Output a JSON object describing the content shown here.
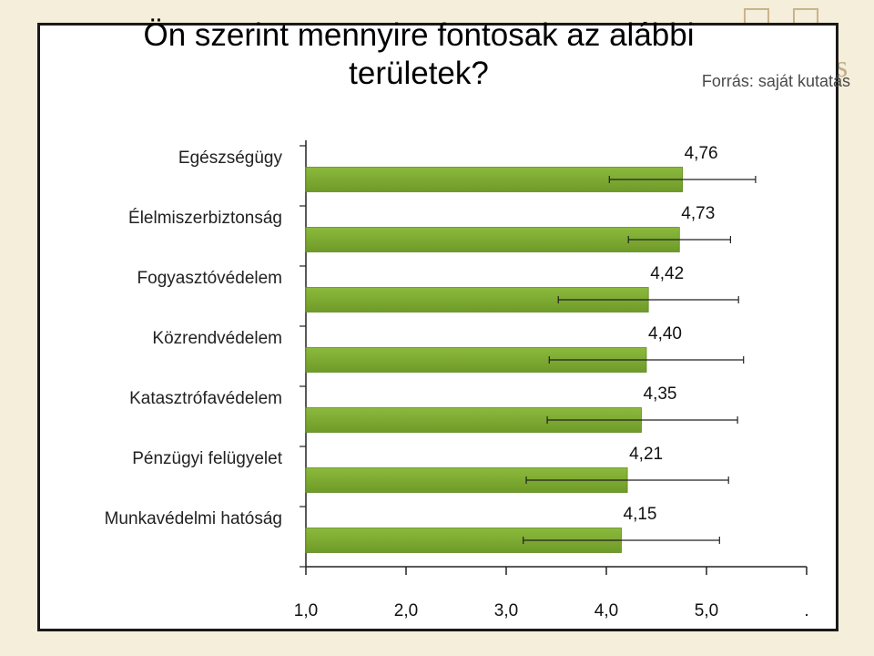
{
  "colors": {
    "bar": "#8cba3c",
    "bar_dark": "#6e9a28",
    "axis": "#222222",
    "background": "#f4eedb",
    "panel": "#ffffff"
  },
  "chart_data": {
    "type": "bar",
    "orientation": "horizontal",
    "title": "Ön szerint mennyire fontosak az alábbi területek?",
    "source_note": "Forrás: saját kutatás",
    "categories": [
      "Egészségügy",
      "Élelmiszerbiztonság",
      "Fogyasztóvédelem",
      "Közrendvédelem",
      "Katasztrófavédelem",
      "Pénzügyi felügyelet",
      "Munkavédelmi hatóság"
    ],
    "values": [
      4.76,
      4.73,
      4.42,
      4.4,
      4.35,
      4.21,
      4.15
    ],
    "value_labels": [
      "4,76",
      "4,73",
      "4,42",
      "4,40",
      "4,35",
      "4,21",
      "4,15"
    ],
    "error_low": [
      4.03,
      4.22,
      3.52,
      3.43,
      3.41,
      3.2,
      3.17
    ],
    "error_high": [
      5.49,
      5.24,
      5.32,
      5.37,
      5.31,
      5.22,
      5.13
    ],
    "xlim": [
      1.0,
      6.0
    ],
    "ticks": [
      1.0,
      2.0,
      3.0,
      4.0,
      5.0,
      6.0
    ],
    "tick_labels": [
      "1,0",
      "2,0",
      "3,0",
      "4,0",
      "5,0",
      "."
    ],
    "grid": false,
    "legend": "none"
  }
}
